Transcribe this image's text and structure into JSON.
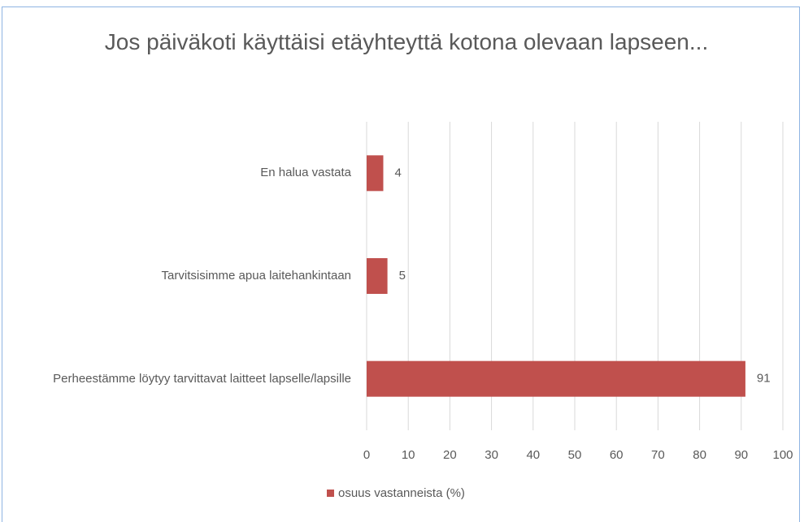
{
  "chart_data": {
    "type": "bar",
    "orientation": "horizontal",
    "title": "Jos päiväkoti käyttäisi etäyhteyttä kotona olevaan lapseen...",
    "categories": [
      "En halua vastata",
      "Tarvitsisimme apua laitehankintaan",
      "Perheestämme löytyy tarvittavat laitteet lapselle/lapsille"
    ],
    "series": [
      {
        "name": "osuus vastanneista (%)",
        "color": "#c0504d",
        "values": [
          4,
          5,
          91
        ]
      }
    ],
    "xlim": [
      0,
      100
    ],
    "xticks": [
      0,
      10,
      20,
      30,
      40,
      50,
      60,
      70,
      80,
      90,
      100
    ],
    "grid": true,
    "legend": "bottom"
  }
}
